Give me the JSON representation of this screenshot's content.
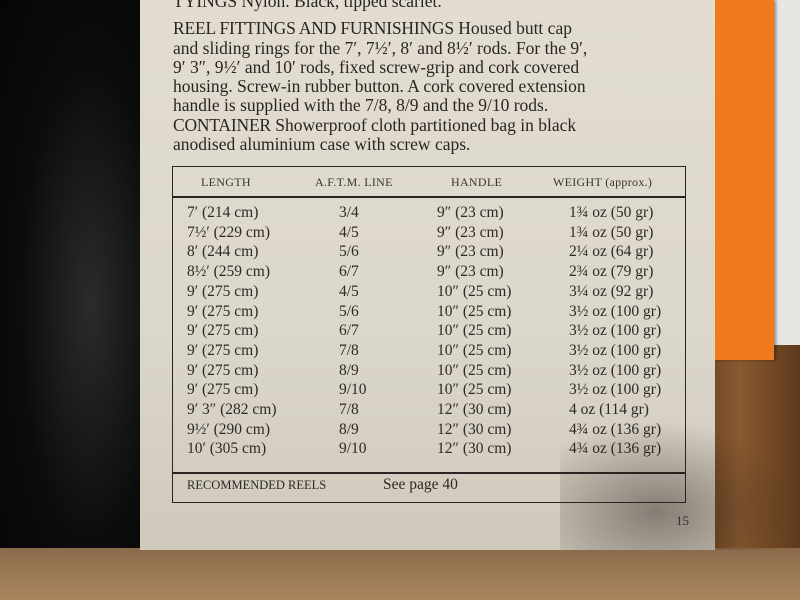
{
  "text": {
    "tyings": "TYINGS Nylon. Black, tipped scarlet.",
    "reel_heading": "REEL FITTINGS AND FURNISHINGS",
    "reel_body_1": " Housed butt cap",
    "reel_body_2": "and sliding rings for the 7′, 7½′, 8′ and 8½′ rods. For the 9′,",
    "reel_body_3": "9′ 3″, 9½′ and 10′ rods, fixed screw-grip and cork covered",
    "reel_body_4": "housing. Screw-in rubber button. A cork covered extension",
    "reel_body_5": "handle is supplied with the 7/8, 8/9 and the 9/10 rods.",
    "container_heading": "CONTAINER",
    "container_body_1": " Showerproof cloth partitioned bag in black",
    "container_body_2": "anodised aluminium case with screw caps."
  },
  "table": {
    "headers": [
      "LENGTH",
      "A.F.T.M. LINE",
      "HANDLE",
      "WEIGHT (approx.)"
    ],
    "rows": [
      [
        "7′ (214 cm)",
        "3/4",
        "9″ (23 cm)",
        "1¾ oz (50 gr)"
      ],
      [
        "7½′ (229 cm)",
        "4/5",
        "9″ (23 cm)",
        "1¾ oz (50 gr)"
      ],
      [
        "8′ (244 cm)",
        "5/6",
        "9″ (23 cm)",
        "2¼ oz (64 gr)"
      ],
      [
        "8½′ (259 cm)",
        "6/7",
        "9″ (23 cm)",
        "2¾ oz (79 gr)"
      ],
      [
        "9′ (275 cm)",
        "4/5",
        "10″ (25 cm)",
        "3¼ oz (92 gr)"
      ],
      [
        "9′ (275 cm)",
        "5/6",
        "10″ (25 cm)",
        "3½ oz (100 gr)"
      ],
      [
        "9′ (275 cm)",
        "6/7",
        "10″ (25 cm)",
        "3½ oz (100 gr)"
      ],
      [
        "9′ (275 cm)",
        "7/8",
        "10″ (25 cm)",
        "3½ oz (100 gr)"
      ],
      [
        "9′ (275 cm)",
        "8/9",
        "10″ (25 cm)",
        "3½ oz (100 gr)"
      ],
      [
        "9′ (275 cm)",
        "9/10",
        "10″ (25 cm)",
        "3½ oz (100 gr)"
      ],
      [
        "9′ 3″ (282 cm)",
        "7/8",
        "12″ (30 cm)",
        "4 oz (114 gr)"
      ],
      [
        "9½′ (290 cm)",
        "8/9",
        "12″ (30 cm)",
        "4¾ oz (136 gr)"
      ],
      [
        "10′ (305 cm)",
        "9/10",
        "12″ (30 cm)",
        "4¾ oz (136 gr)"
      ]
    ],
    "footer_label": "RECOMMENDED REELS",
    "footer_value": "See page 40"
  },
  "page_number": "15",
  "colors": {
    "paper": "#dcd7cb",
    "ink": "#2a2522",
    "orange_sheet": "#f07a1e",
    "wood": "#8a5a30"
  }
}
